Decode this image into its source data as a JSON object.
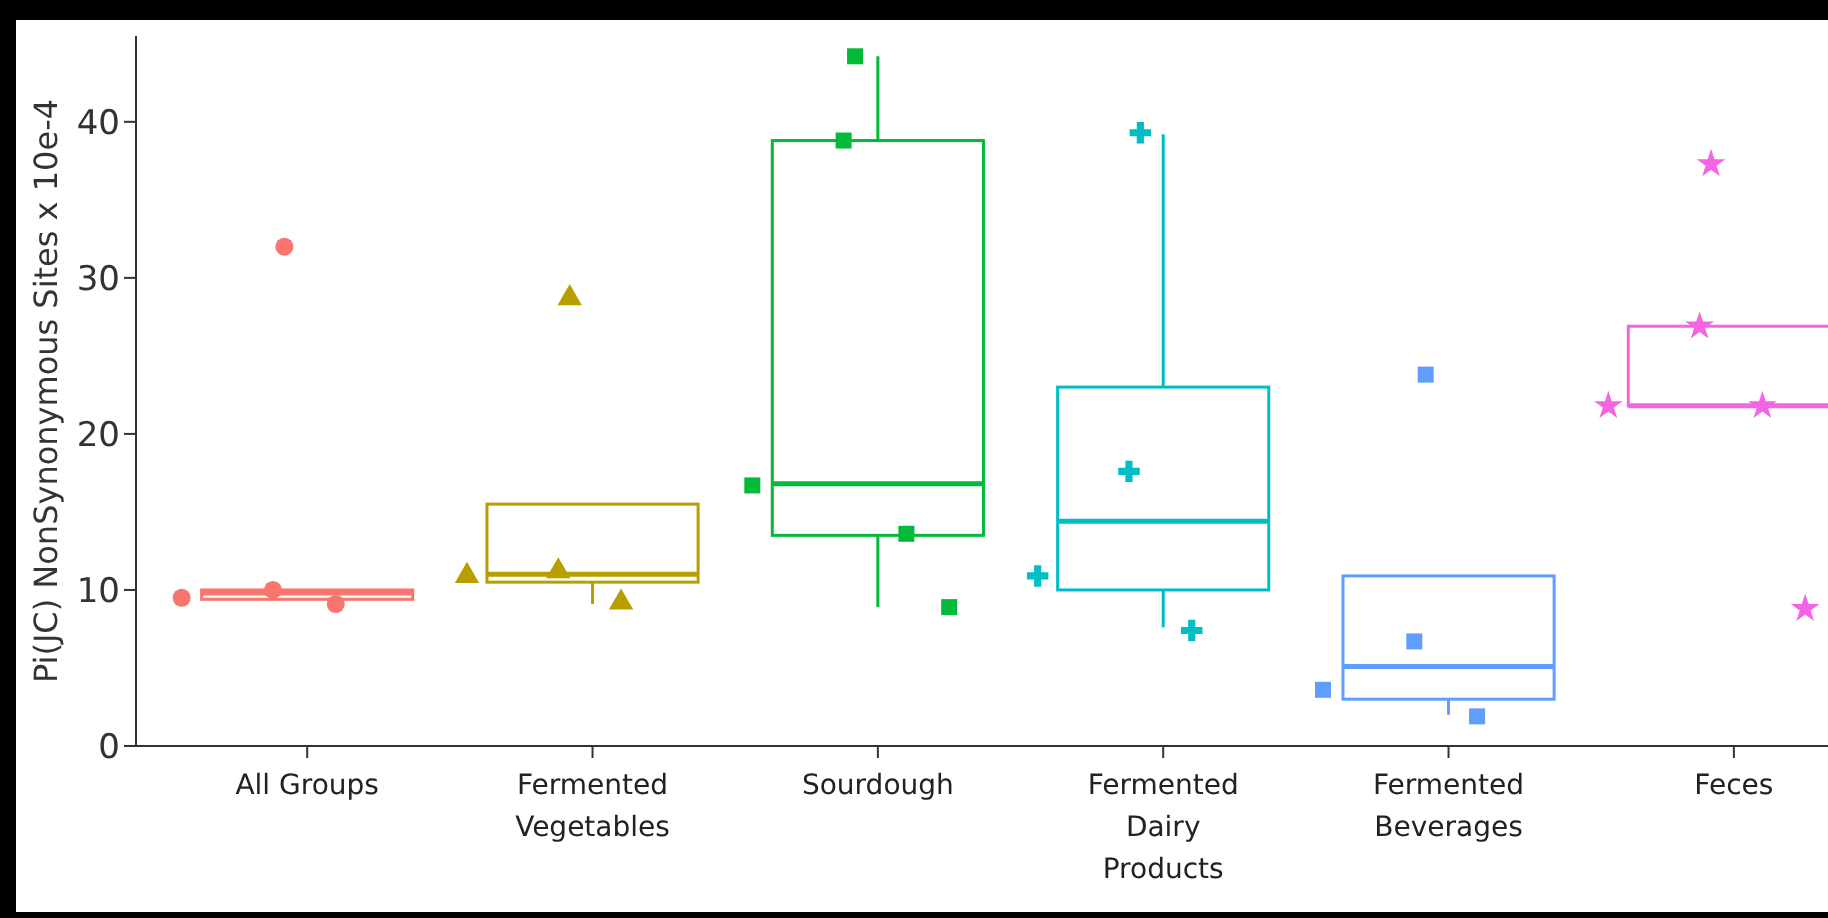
{
  "chart_data": {
    "type": "box",
    "ylabel": "Pi(JC) NonSynonymous Sites x 10e-4",
    "categories": [
      "All Groups",
      "Fermented Vegetables",
      "Sourdough",
      "Fermented Dairy Products",
      "Fermented Beverages",
      "Feces"
    ],
    "colors": [
      "#f8766d",
      "#b79f00",
      "#00ba38",
      "#00bfc4",
      "#619cff",
      "#f564e3"
    ],
    "boxes": [
      {
        "low": 9.4,
        "q1": 9.4,
        "median": 9.8,
        "q3": 10.0,
        "high": 10.0
      },
      {
        "low": 9.1,
        "q1": 10.5,
        "median": 11.0,
        "q3": 15.5,
        "high": 15.5
      },
      {
        "low": 8.9,
        "q1": 13.5,
        "median": 16.8,
        "q3": 38.8,
        "high": 44.2
      },
      {
        "low": 7.6,
        "q1": 10.0,
        "median": 14.4,
        "q3": 23.0,
        "high": 39.2
      },
      {
        "low": 2.0,
        "q1": 3.0,
        "median": 5.1,
        "q3": 10.9,
        "high": 10.9
      },
      {
        "low": 21.8,
        "q1": 21.8,
        "median": 21.8,
        "q3": 26.9,
        "high": 26.9
      }
    ],
    "series": [
      {
        "type": "scatter",
        "color": "#f8766d",
        "marker": "circle",
        "x": [
          "All Groups",
          "All Groups",
          "All Groups",
          "All Groups"
        ],
        "values": [
          32,
          10,
          9.5,
          9.1
        ]
      },
      {
        "type": "scatter",
        "color": "#b79f00",
        "marker": "triangle",
        "x": [
          "Fermented Vegetables",
          "Fermented Vegetables",
          "Fermented Vegetables",
          "Fermented Vegetables"
        ],
        "values": [
          28.7,
          11.2,
          10.9,
          9.2
        ]
      },
      {
        "type": "scatter",
        "color": "#00ba38",
        "marker": "square",
        "x": [
          "Sourdough",
          "Sourdough",
          "Sourdough",
          "Sourdough",
          "Sourdough"
        ],
        "values": [
          44.2,
          38.8,
          16.7,
          13.6,
          8.9
        ]
      },
      {
        "type": "scatter",
        "color": "#00bfc4",
        "marker": "cross",
        "x": [
          "Fermented Dairy Products",
          "Fermented Dairy Products",
          "Fermented Dairy Products",
          "Fermented Dairy Products"
        ],
        "values": [
          39.3,
          17.6,
          10.9,
          7.4
        ]
      },
      {
        "type": "scatter",
        "color": "#619cff",
        "marker": "square",
        "x": [
          "Fermented Beverages",
          "Fermented Beverages",
          "Fermented Beverages",
          "Fermented Beverages"
        ],
        "values": [
          23.8,
          6.7,
          3.6,
          1.9
        ]
      },
      {
        "type": "scatter",
        "color": "#f564e3",
        "marker": "star",
        "x": [
          "Feces",
          "Feces",
          "Feces",
          "Feces",
          "Feces"
        ],
        "values": [
          37.3,
          26.9,
          21.8,
          21.8,
          8.8
        ]
      }
    ],
    "ylim": [
      0,
      45.5
    ],
    "yticks": [
      0,
      10,
      20,
      30,
      40
    ],
    "grid": false,
    "legend": false
  }
}
